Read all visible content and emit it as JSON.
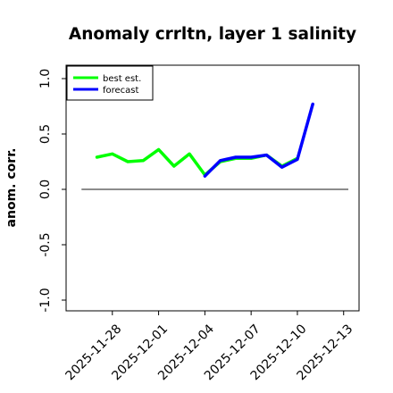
{
  "chart_data": {
    "type": "line",
    "title": "Anomaly crrltn, layer 1 salinity",
    "xlabel": "",
    "ylabel": "anom. corr.",
    "ylim": [
      -1.0,
      1.0
    ],
    "xlim": [
      "2025-11-25",
      "2025-12-14"
    ],
    "y_ticks": [
      "-1.0",
      "-0.5",
      "0.0",
      "0.5",
      "1.0"
    ],
    "x_ticks": [
      {
        "date": "2025-11-28",
        "label": "2025-11-28",
        "color": "#000000"
      },
      {
        "date": "2025-12-01",
        "label": "2025-12-01",
        "color": "#000000"
      },
      {
        "date": "2025-12-04",
        "label": "2025-12-04",
        "color": "#2e8b57"
      },
      {
        "date": "2025-12-07",
        "label": "2025-12-07",
        "color": "#000000"
      },
      {
        "date": "2025-12-10",
        "label": "2025-12-10",
        "color": "#000000"
      },
      {
        "date": "2025-12-13",
        "label": "2025-12-13",
        "color": "#000000"
      }
    ],
    "zero_line": {
      "y": 0,
      "color": "#666666"
    },
    "legend": {
      "position": "top-left"
    },
    "series": [
      {
        "name": "best est.",
        "color": "#00ff00",
        "x": [
          "2025-11-27",
          "2025-11-28",
          "2025-11-29",
          "2025-11-30",
          "2025-12-01",
          "2025-12-02",
          "2025-12-03",
          "2025-12-04",
          "2025-12-05",
          "2025-12-06",
          "2025-12-07",
          "2025-12-08",
          "2025-12-09",
          "2025-12-10"
        ],
        "values": [
          0.29,
          0.32,
          0.25,
          0.26,
          0.36,
          0.21,
          0.32,
          0.13,
          0.25,
          0.28,
          0.28,
          0.31,
          0.21,
          0.28
        ]
      },
      {
        "name": "forecast",
        "color": "#0000ff",
        "x": [
          "2025-12-04",
          "2025-12-05",
          "2025-12-06",
          "2025-12-07",
          "2025-12-08",
          "2025-12-09",
          "2025-12-10",
          "2025-12-11"
        ],
        "values": [
          0.12,
          0.26,
          0.29,
          0.29,
          0.31,
          0.2,
          0.27,
          0.77
        ]
      }
    ]
  }
}
